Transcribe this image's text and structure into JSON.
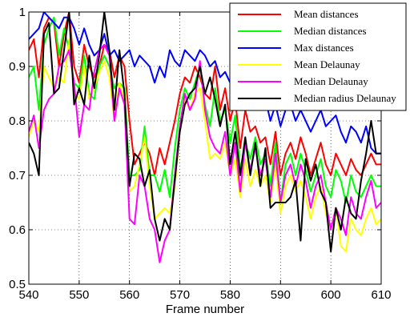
{
  "chart_data": {
    "type": "line",
    "title": "",
    "xlabel": "Frame number",
    "ylabel": "",
    "xlim": [
      540,
      610
    ],
    "ylim": [
      0.5,
      1.0
    ],
    "xticks": [
      "540",
      "550",
      "560",
      "570",
      "580",
      "590",
      "600",
      "610"
    ],
    "yticks": [
      "0.5",
      "0.6",
      "0.7",
      "0.8",
      "0.9",
      "1"
    ],
    "grid": true,
    "legend_position": "top-right",
    "x": [
      540,
      541,
      542,
      543,
      544,
      545,
      546,
      547,
      548,
      549,
      550,
      551,
      552,
      553,
      554,
      555,
      556,
      557,
      558,
      559,
      560,
      561,
      562,
      563,
      564,
      565,
      566,
      567,
      568,
      569,
      570,
      571,
      572,
      573,
      574,
      575,
      576,
      577,
      578,
      579,
      580,
      581,
      582,
      583,
      584,
      585,
      586,
      587,
      588,
      589,
      590,
      591,
      592,
      593,
      594,
      595,
      596,
      597,
      598,
      599,
      600,
      601,
      602,
      603,
      604,
      605,
      606,
      607,
      608,
      609,
      610
    ],
    "series": [
      {
        "name": "Mean distances",
        "color": "#ff0000",
        "values": [
          0.93,
          0.95,
          0.88,
          0.97,
          0.99,
          0.98,
          0.9,
          0.96,
          1.0,
          0.9,
          0.87,
          0.94,
          0.9,
          0.88,
          0.9,
          0.94,
          0.93,
          0.88,
          0.92,
          0.9,
          0.8,
          0.72,
          0.74,
          0.76,
          0.74,
          0.7,
          0.75,
          0.72,
          0.76,
          0.8,
          0.85,
          0.88,
          0.87,
          0.9,
          0.88,
          0.85,
          0.84,
          0.9,
          0.82,
          0.86,
          0.8,
          0.84,
          0.75,
          0.82,
          0.78,
          0.79,
          0.76,
          0.77,
          0.72,
          0.78,
          0.7,
          0.74,
          0.76,
          0.73,
          0.77,
          0.74,
          0.7,
          0.73,
          0.76,
          0.72,
          0.7,
          0.74,
          0.72,
          0.7,
          0.73,
          0.71,
          0.7,
          0.72,
          0.74,
          0.72,
          0.72
        ]
      },
      {
        "name": "Median distances",
        "color": "#00ff00",
        "values": [
          0.88,
          0.9,
          0.82,
          0.94,
          0.97,
          0.99,
          0.92,
          0.97,
          0.93,
          0.87,
          0.86,
          0.92,
          0.85,
          0.84,
          0.9,
          0.92,
          0.9,
          0.86,
          0.87,
          0.86,
          0.7,
          0.7,
          0.71,
          0.79,
          0.7,
          0.7,
          0.67,
          0.71,
          0.66,
          0.75,
          0.82,
          0.86,
          0.84,
          0.87,
          0.9,
          0.83,
          0.79,
          0.86,
          0.8,
          0.82,
          0.76,
          0.81,
          0.71,
          0.76,
          0.73,
          0.77,
          0.72,
          0.74,
          0.68,
          0.76,
          0.65,
          0.72,
          0.74,
          0.7,
          0.74,
          0.71,
          0.67,
          0.7,
          0.73,
          0.68,
          0.66,
          0.71,
          0.69,
          0.65,
          0.7,
          0.67,
          0.66,
          0.68,
          0.7,
          0.68,
          0.68
        ]
      },
      {
        "name": "Max distances",
        "color": "#0000ff",
        "values": [
          0.95,
          0.96,
          0.97,
          1.0,
          0.99,
          0.98,
          0.97,
          0.99,
          0.99,
          0.97,
          0.94,
          0.97,
          0.94,
          0.92,
          0.93,
          0.96,
          0.92,
          0.93,
          0.91,
          0.92,
          0.93,
          0.9,
          0.92,
          0.91,
          0.9,
          0.87,
          0.9,
          0.88,
          0.93,
          0.91,
          0.9,
          0.93,
          0.92,
          0.91,
          0.93,
          0.92,
          0.9,
          0.91,
          0.88,
          0.89,
          0.87,
          0.88,
          0.85,
          0.86,
          0.83,
          0.85,
          0.82,
          0.84,
          0.8,
          0.83,
          0.79,
          0.82,
          0.83,
          0.8,
          0.82,
          0.8,
          0.78,
          0.8,
          0.82,
          0.79,
          0.8,
          0.81,
          0.78,
          0.76,
          0.79,
          0.78,
          0.76,
          0.79,
          0.75,
          0.74,
          0.74
        ]
      },
      {
        "name": "Mean Delaunay",
        "color": "#ffff00",
        "values": [
          0.77,
          0.8,
          0.78,
          0.9,
          0.88,
          0.86,
          0.88,
          0.87,
          0.95,
          0.85,
          0.84,
          0.9,
          0.84,
          0.86,
          0.89,
          0.91,
          0.88,
          0.8,
          0.87,
          0.84,
          0.67,
          0.68,
          0.72,
          0.77,
          0.68,
          0.62,
          0.63,
          0.64,
          0.63,
          0.68,
          0.78,
          0.84,
          0.82,
          0.85,
          0.86,
          0.8,
          0.73,
          0.74,
          0.73,
          0.76,
          0.7,
          0.73,
          0.66,
          0.73,
          0.68,
          0.71,
          0.68,
          0.7,
          0.65,
          0.72,
          0.63,
          0.68,
          0.7,
          0.67,
          0.69,
          0.66,
          0.62,
          0.66,
          0.68,
          0.63,
          0.6,
          0.64,
          0.57,
          0.56,
          0.62,
          0.6,
          0.59,
          0.62,
          0.64,
          0.61,
          0.62
        ]
      },
      {
        "name": "Median Delaunay",
        "color": "#ff00ff",
        "values": [
          0.78,
          0.81,
          0.75,
          0.82,
          0.84,
          0.85,
          0.9,
          0.91,
          0.93,
          0.87,
          0.77,
          0.83,
          0.82,
          0.89,
          0.93,
          0.94,
          0.92,
          0.8,
          0.86,
          0.83,
          0.62,
          0.61,
          0.7,
          0.68,
          0.62,
          0.6,
          0.54,
          0.58,
          0.6,
          0.7,
          0.79,
          0.85,
          0.82,
          0.84,
          0.91,
          0.82,
          0.77,
          0.75,
          0.74,
          0.78,
          0.7,
          0.76,
          0.67,
          0.76,
          0.71,
          0.75,
          0.7,
          0.73,
          0.66,
          0.74,
          0.65,
          0.7,
          0.72,
          0.68,
          0.72,
          0.69,
          0.64,
          0.68,
          0.7,
          0.65,
          0.6,
          0.64,
          0.62,
          0.59,
          0.66,
          0.63,
          0.62,
          0.66,
          0.69,
          0.64,
          0.65
        ]
      },
      {
        "name": "Median radius Delaunay",
        "color": "#000000",
        "values": [
          0.76,
          0.74,
          0.7,
          0.96,
          0.98,
          0.85,
          0.86,
          0.93,
          1.0,
          0.83,
          0.86,
          0.83,
          0.92,
          0.86,
          0.92,
          1.0,
          0.93,
          0.82,
          0.93,
          0.85,
          0.68,
          0.74,
          0.73,
          0.68,
          0.71,
          0.62,
          0.58,
          0.62,
          0.6,
          0.69,
          0.78,
          0.83,
          0.85,
          0.86,
          0.9,
          0.85,
          0.88,
          0.84,
          0.79,
          0.83,
          0.72,
          0.78,
          0.7,
          0.77,
          0.7,
          0.76,
          0.68,
          0.75,
          0.64,
          0.65,
          0.65,
          0.65,
          0.66,
          0.69,
          0.58,
          0.73,
          0.69,
          0.72,
          0.67,
          0.65,
          0.56,
          0.64,
          0.6,
          0.66,
          0.63,
          0.62,
          0.69,
          0.74,
          0.8,
          0.74,
          0.74
        ]
      }
    ]
  }
}
